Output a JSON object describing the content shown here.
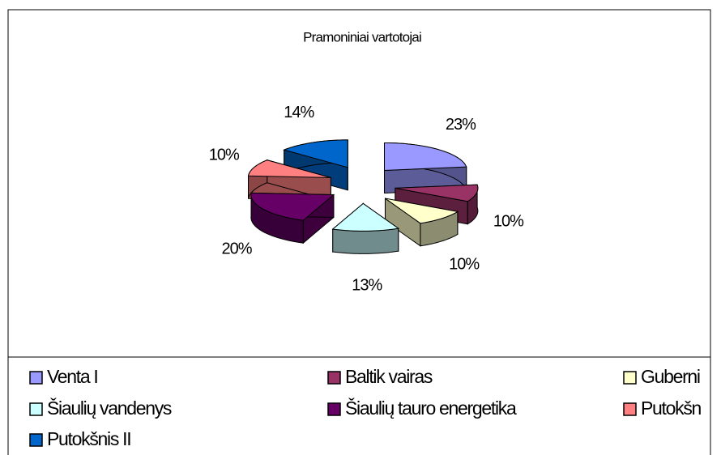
{
  "chart_data": {
    "type": "pie3d",
    "title": "Pramoniniai vartotojai",
    "categories": [
      "Venta I",
      "Baltik vairas",
      "Guberni",
      "Šiaulių vandenys",
      "Šiaulių tauro energetika",
      "Putokšn",
      "Putokšnis II"
    ],
    "values": [
      23,
      10,
      10,
      13,
      20,
      10,
      14
    ],
    "value_labels": [
      "23%",
      "10%",
      "10%",
      "13%",
      "20%",
      "10%",
      "14%"
    ],
    "colors": [
      "#9999ff",
      "#993366",
      "#ffffcc",
      "#ccffff",
      "#660066",
      "#ff8080",
      "#0066cc"
    ],
    "legend": "bottom"
  }
}
